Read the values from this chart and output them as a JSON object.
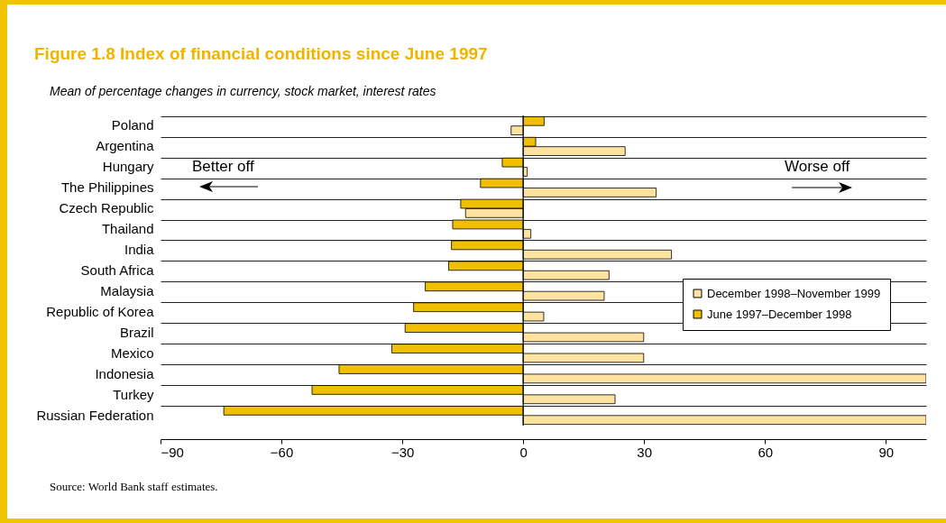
{
  "chart_data": {
    "type": "bar",
    "orientation": "horizontal",
    "title": "Figure 1.8  Index of financial conditions since June 1997",
    "subtitle": "Mean of percentage changes in currency, stock market, interest rates",
    "categories": [
      "Poland",
      "Argentina",
      "Hungary",
      "The Philippines",
      "Czech Republic",
      "Thailand",
      "India",
      "South Africa",
      "Malaysia",
      "Republic of Korea",
      "Brazil",
      "Mexico",
      "Indonesia",
      "Turkey",
      "Russian Federation"
    ],
    "series": [
      {
        "name": "June 1997–December 1998",
        "color": "#f0bf00",
        "values": [
          5.2,
          3.1,
          -5.2,
          -10.6,
          -15.5,
          -17.5,
          -17.8,
          -18.5,
          -24.3,
          -27.2,
          -29.3,
          -32.6,
          -45.7,
          -52.4,
          -74.3
        ]
      },
      {
        "name": "December 1998–November 1999",
        "color": "#fde2a0",
        "values": [
          -3.0,
          25.3,
          1.0,
          33.0,
          -14.3,
          1.9,
          36.8,
          21.3,
          20.1,
          5.1,
          29.9,
          29.9,
          100,
          22.8,
          100
        ]
      }
    ],
    "xlim": [
      -90,
      100
    ],
    "xticks": [
      -90,
      -60,
      -30,
      0,
      30,
      60,
      90
    ],
    "ref_lines": [
      {
        "axis": "x",
        "value": 0,
        "color": "#000000"
      }
    ],
    "grid": "y",
    "legend": "right",
    "annotations": [
      "Better off",
      "Worse off",
      "Source: World Bank staff estimates."
    ]
  }
}
